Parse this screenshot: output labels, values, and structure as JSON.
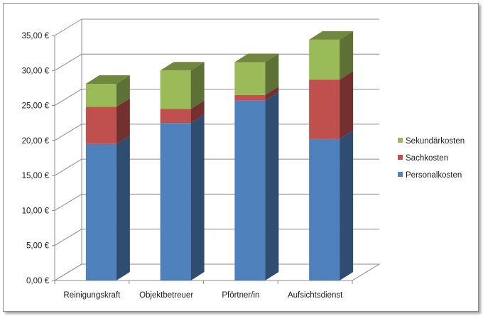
{
  "chart_data": {
    "type": "bar",
    "stacked": true,
    "three_d": true,
    "categories": [
      "Reinigungskraft",
      "Objektbetreuer",
      "Pförtner/in",
      "Aufsichtsdienst"
    ],
    "series": [
      {
        "name": "Personalkosten",
        "values": [
          19.5,
          22.5,
          25.7,
          20.2
        ],
        "color": "#4f81bd"
      },
      {
        "name": "Sachkosten",
        "values": [
          5.3,
          2.0,
          0.8,
          8.5
        ],
        "color": "#c0504d"
      },
      {
        "name": "Sekundärkosten",
        "values": [
          3.3,
          5.5,
          4.7,
          5.7
        ],
        "color": "#9bbb59"
      }
    ],
    "ylim": [
      0,
      35
    ],
    "yticks": [
      0,
      5,
      10,
      15,
      20,
      25,
      30,
      35
    ],
    "ytick_labels": [
      "0,00 €",
      "5,00 €",
      "10,00 €",
      "15,00 €",
      "20,00 €",
      "25,00 €",
      "30,00 €",
      "35,00 €"
    ],
    "title": "",
    "xlabel": "",
    "ylabel": "",
    "grid": true,
    "legend_position": "right",
    "legend_order": [
      "Sekundärkosten",
      "Sachkosten",
      "Personalkosten"
    ]
  }
}
